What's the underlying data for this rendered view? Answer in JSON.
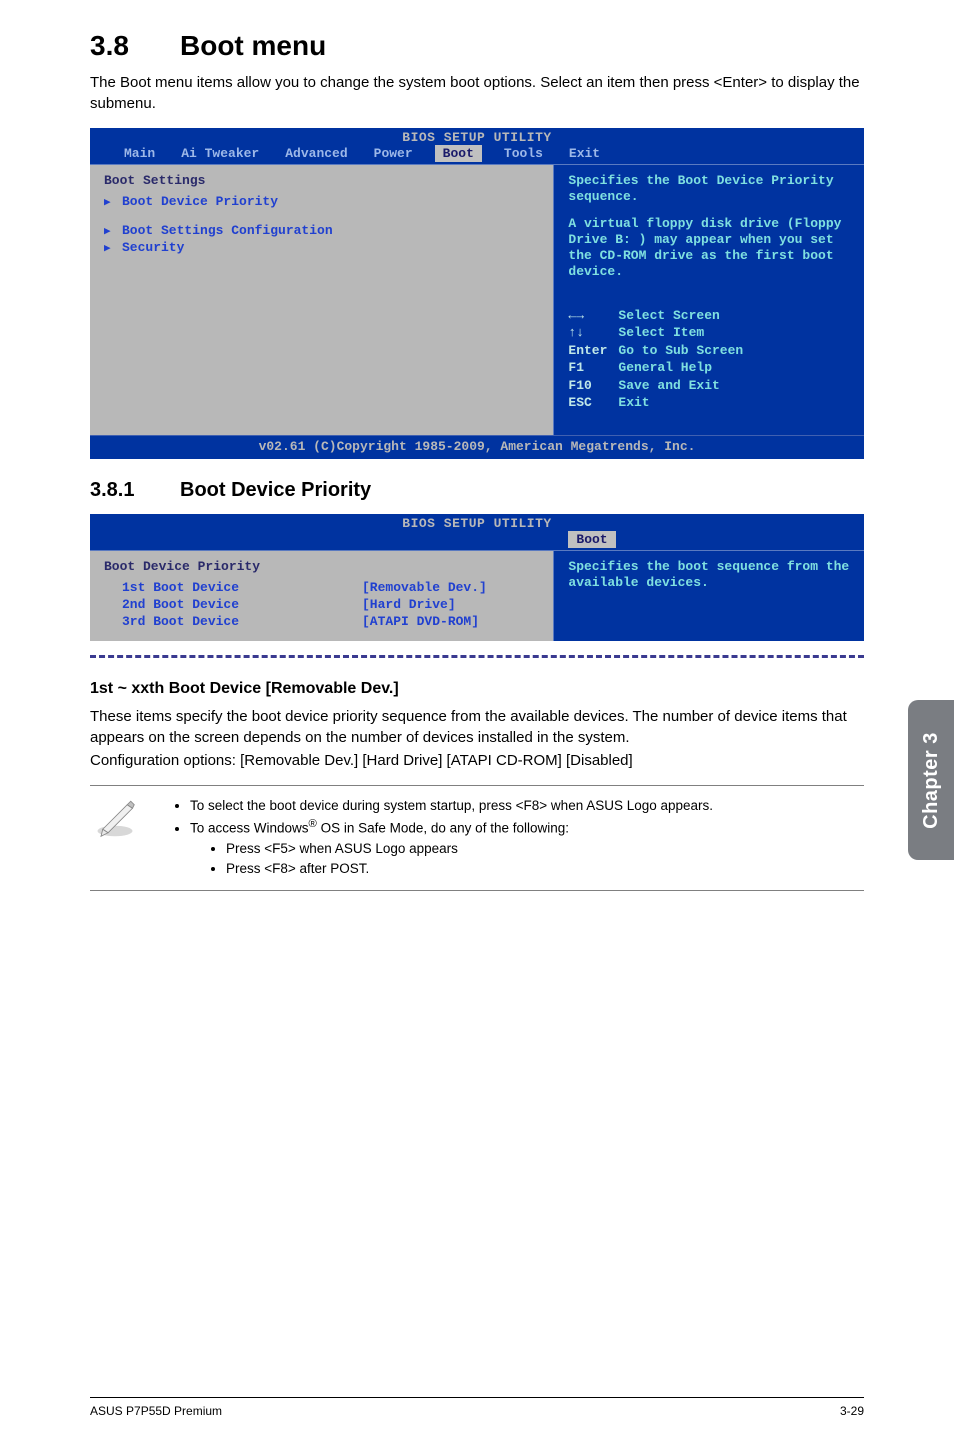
{
  "section": {
    "num": "3.8",
    "title": "Boot menu"
  },
  "intro": "The Boot menu items allow you to change the system boot options. Select an item then press <Enter> to display the submenu.",
  "bios_main": {
    "utility_title": "BIOS SETUP UTILITY",
    "tabs": [
      "Main",
      "Ai Tweaker",
      "Advanced",
      "Power",
      "Boot",
      "Tools",
      "Exit"
    ],
    "active_tab_index": 4,
    "left_title": "Boot Settings",
    "left_items": [
      {
        "label": "Boot Device Priority"
      },
      {
        "label": "Boot Settings Configuration",
        "spacer_before": true
      },
      {
        "label": "Security"
      }
    ],
    "right_para1": "Specifies the Boot Device Priority sequence.",
    "right_para2": "A virtual floppy disk drive (Floppy Drive B: ) may appear when you set the CD-ROM drive as the first boot device.",
    "nav": [
      {
        "key": "←→",
        "action": "Select Screen"
      },
      {
        "key": "↑↓",
        "action": "Select Item"
      },
      {
        "key": "Enter",
        "action": "Go to Sub Screen"
      },
      {
        "key": "F1",
        "action": "General Help"
      },
      {
        "key": "F10",
        "action": "Save and Exit"
      },
      {
        "key": "ESC",
        "action": "Exit"
      }
    ],
    "footer": "v02.61 (C)Copyright 1985-2009, American Megatrends, Inc."
  },
  "subsection": {
    "num": "3.8.1",
    "title": "Boot Device Priority"
  },
  "bios_sub": {
    "utility_title": "BIOS SETUP UTILITY",
    "active_tab": "Boot",
    "left_title": "Boot Device Priority",
    "devices": [
      {
        "label": "1st Boot Device",
        "value": "[Removable Dev.]"
      },
      {
        "label": "2nd Boot Device",
        "value": "[Hard Drive]"
      },
      {
        "label": "3rd Boot Device",
        "value": "[ATAPI DVD-ROM]"
      }
    ],
    "right_para": "Specifies the boot sequence from the available devices."
  },
  "item_heading": "1st ~ xxth Boot Device [Removable Dev.]",
  "item_p1": "These items specify the boot device priority sequence from the available devices. The number of device items that appears on the screen depends on the number of devices installed in the system.",
  "item_p2": "Configuration options: [Removable Dev.] [Hard Drive] [ATAPI CD-ROM] [Disabled]",
  "notes": {
    "b1": "To select the boot device during system startup, press <F8> when ASUS Logo appears.",
    "b2_pre": "To access Windows",
    "b2_sup": "®",
    "b2_post": " OS in Safe Mode, do any of the following:",
    "b2a": "Press <F5> when ASUS Logo appears",
    "b2b": "Press <F8> after POST."
  },
  "sidetab": "Chapter 3",
  "footer_left": "ASUS P7P55D Premium",
  "footer_right": "3-29",
  "colors": {
    "bios_bg": "#0033a0",
    "bios_panel": "#b8b8b8",
    "bios_cyan": "#7fe0e0",
    "bios_blue_text": "#2040d0",
    "sidetab_bg": "#7a7d82"
  }
}
